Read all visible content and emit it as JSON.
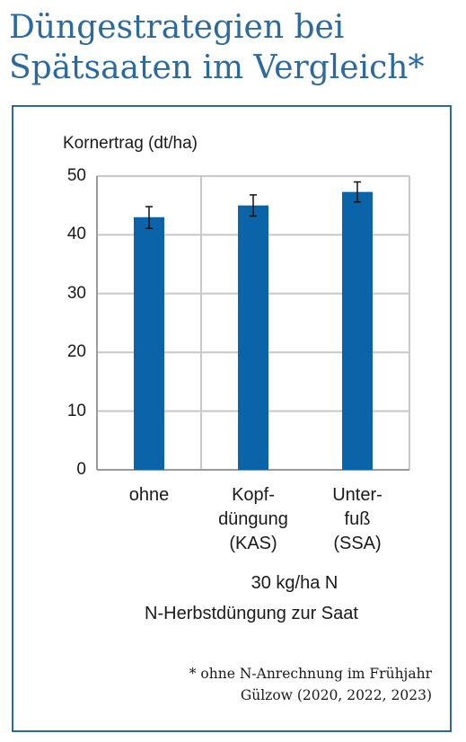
{
  "title_line1": "Düngestrategien bei",
  "title_line2": "Spätsaaten im Vergleich*",
  "chart_data": {
    "type": "bar",
    "ylabel": "Kornertrag (dt/ha)",
    "ylim": [
      0,
      50
    ],
    "yticks": [
      "0",
      "10",
      "20",
      "30",
      "40",
      "50"
    ],
    "categories": [
      "ohne",
      "Kopf-\ndüngung\n(KAS)",
      "Unter-\nfuß\n(SSA)"
    ],
    "values": [
      43,
      45,
      47.3
    ],
    "error_low": [
      41.1,
      43.2,
      45.6
    ],
    "error_high": [
      44.8,
      46.8,
      49.0
    ],
    "group_label": "30 kg/ha N",
    "xlabel": "N-Herbstdüngung zur Saat",
    "bar_color": "#0b63a8",
    "grid": true
  },
  "footnote_line1": "* ohne N-Anrechnung im Frühjahr",
  "footnote_line2": "Gülzow (2020, 2022, 2023)"
}
